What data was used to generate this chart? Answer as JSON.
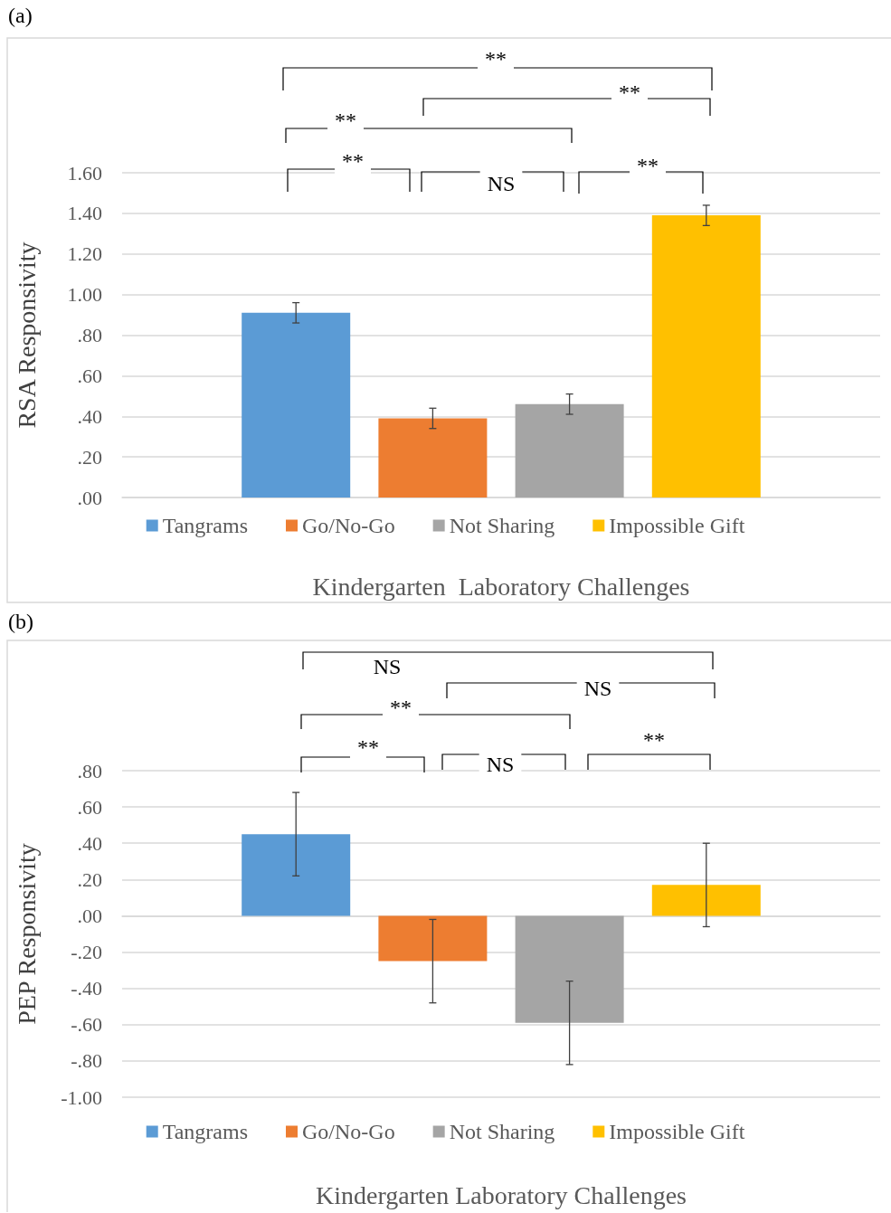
{
  "chart_data": [
    {
      "type": "bar",
      "title": "(a)",
      "xlabel": "Kindergarten  Laboratory Challenges",
      "ylabel": "RSA Responsivity",
      "categories": [
        null
      ],
      "series": [
        {
          "name": "Tangrams",
          "color": "#5b9bd5",
          "values": [
            0.91
          ],
          "errors": [
            0.05
          ]
        },
        {
          "name": "Go/No-Go",
          "color": "#ed7d31",
          "values": [
            0.39
          ],
          "errors": [
            0.05
          ]
        },
        {
          "name": "Not Sharing",
          "color": "#a5a5a5",
          "values": [
            0.46
          ],
          "errors": [
            0.05
          ]
        },
        {
          "name": "Impossible Gift",
          "color": "#ffc000",
          "values": [
            1.39
          ],
          "errors": [
            0.05
          ]
        }
      ],
      "ylim": [
        0,
        1.6
      ],
      "yticks": [
        {
          "value": 0,
          "label": ".00"
        },
        {
          "value": 0.2,
          "label": ".20"
        },
        {
          "value": 0.4,
          "label": ".40"
        },
        {
          "value": 0.6,
          "label": ".60"
        },
        {
          "value": 0.8,
          "label": ".80"
        },
        {
          "value": 1,
          "label": "1.00"
        },
        {
          "value": 1.2,
          "label": "1.20"
        },
        {
          "value": 1.4,
          "label": "1.40"
        },
        {
          "value": 1.6,
          "label": "1.60"
        }
      ],
      "grid": "y",
      "legend": "bottom",
      "annotations": [
        "**",
        "**",
        "**",
        "**",
        "NS",
        "**"
      ]
    },
    {
      "type": "bar",
      "title": "(b)",
      "xlabel": "Kindergarten Laboratory Challenges",
      "ylabel": "PEP Responsivity",
      "categories": [
        null
      ],
      "series": [
        {
          "name": "Tangrams",
          "color": "#5b9bd5",
          "values": [
            0.45
          ],
          "errors": [
            0.23
          ]
        },
        {
          "name": "Go/No-Go",
          "color": "#ed7d31",
          "values": [
            -0.25
          ],
          "errors": [
            0.23
          ]
        },
        {
          "name": "Not Sharing",
          "color": "#a5a5a5",
          "values": [
            -0.59
          ],
          "errors": [
            0.23
          ]
        },
        {
          "name": "Impossible Gift",
          "color": "#ffc000",
          "values": [
            0.17
          ],
          "errors": [
            0.23
          ]
        }
      ],
      "ylim": [
        -1,
        0.8
      ],
      "yticks": [
        {
          "value": -1,
          "label": "-1.00"
        },
        {
          "value": -0.8,
          "label": "-.80"
        },
        {
          "value": -0.6,
          "label": "-.60"
        },
        {
          "value": -0.4,
          "label": "-.40"
        },
        {
          "value": -0.2,
          "label": "-.20"
        },
        {
          "value": 0,
          "label": ".00"
        },
        {
          "value": 0.2,
          "label": ".20"
        },
        {
          "value": 0.4,
          "label": ".40"
        },
        {
          "value": 0.6,
          "label": ".60"
        },
        {
          "value": 0.8,
          "label": ".80"
        }
      ],
      "grid": "y",
      "legend": "bottom",
      "annotations": [
        "NS",
        "NS",
        "**",
        "**",
        "NS",
        "**"
      ]
    }
  ]
}
